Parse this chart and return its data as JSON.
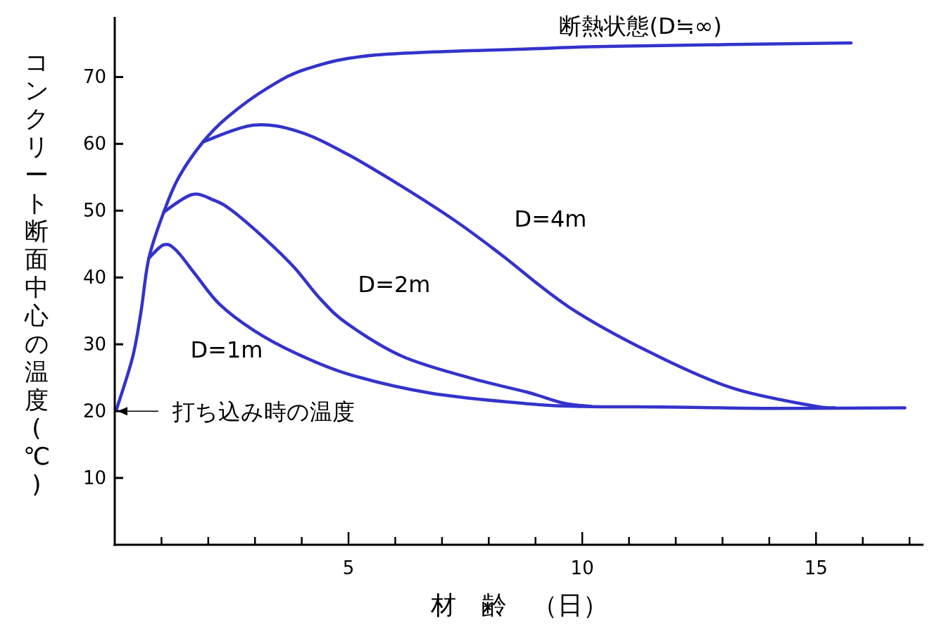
{
  "chart_data": {
    "type": "line",
    "xlabel": "材　齢　（日）",
    "ylabel": "コンクリート断面中心の温度(℃)",
    "xlim": [
      0,
      17.3
    ],
    "ylim": [
      0,
      79
    ],
    "xticks": [
      {
        "value": 1,
        "label": null
      },
      {
        "value": 2,
        "label": null
      },
      {
        "value": 3,
        "label": null
      },
      {
        "value": 4,
        "label": null
      },
      5,
      {
        "value": 6,
        "label": null
      },
      {
        "value": 7,
        "label": null
      },
      {
        "value": 8,
        "label": null
      },
      {
        "value": 9,
        "label": null
      },
      10,
      {
        "value": 11,
        "label": null
      },
      {
        "value": 12,
        "label": null
      },
      {
        "value": 13,
        "label": null
      },
      {
        "value": 14,
        "label": null
      },
      15,
      {
        "value": 16,
        "label": null
      },
      {
        "value": 17,
        "label": null
      }
    ],
    "yticks": [
      10,
      20,
      30,
      40,
      50,
      60,
      70
    ],
    "grid": false,
    "marker": "none",
    "line_style": "solid",
    "series": [
      {
        "color": "#3333cc",
        "x": [
          0.03,
          0.38,
          0.56,
          0.73,
          1.05,
          1.37,
          1.89,
          2.41,
          3.28,
          4.14,
          5.6,
          8.84,
          10.7,
          15.75
        ],
        "values": [
          20.1,
          28,
          34.8,
          42.9,
          49.8,
          55,
          60.3,
          64,
          68.4,
          71.3,
          73.3,
          74.2,
          74.6,
          75.1
        ]
      },
      {
        "color": "#3333cc",
        "x": [
          1.89,
          2.97,
          3.95,
          4.99,
          6.15,
          7.3,
          8.25,
          9.71,
          11.45,
          13.19,
          14.93,
          15.4
        ],
        "values": [
          60.3,
          62.8,
          61.8,
          58.4,
          53.6,
          48.4,
          43.5,
          35.6,
          28.8,
          23.5,
          20.8,
          20.5
        ]
      },
      {
        "color": "#3333cc",
        "x": [
          1.05,
          1.65,
          2.11,
          2.51,
          3.26,
          3.84,
          4.41,
          4.99,
          6.15,
          7.58,
          8.84,
          9.6,
          10.2
        ],
        "values": [
          49.8,
          52.4,
          51.6,
          50,
          45.5,
          41.5,
          36.7,
          33,
          28.2,
          25,
          22.8,
          21.2,
          20.7
        ]
      },
      {
        "color": "#3333cc",
        "x": [
          0.73,
          1.05,
          1.31,
          1.72,
          2.24,
          2.99,
          3.86,
          5.01,
          6.75,
          8.84,
          10,
          12,
          14,
          16.9
        ],
        "values": [
          42.9,
          44.9,
          44.1,
          40.5,
          36,
          32,
          28.7,
          25.5,
          22.7,
          21.1,
          20.7,
          20.6,
          20.4,
          20.5
        ]
      }
    ],
    "annotations": [
      "断熱状態(D≒∞)",
      "D=4m",
      "D=2m",
      "D=1m",
      {
        "text": "打ち込み時の温度",
        "x": 0,
        "y": 20
      }
    ]
  }
}
